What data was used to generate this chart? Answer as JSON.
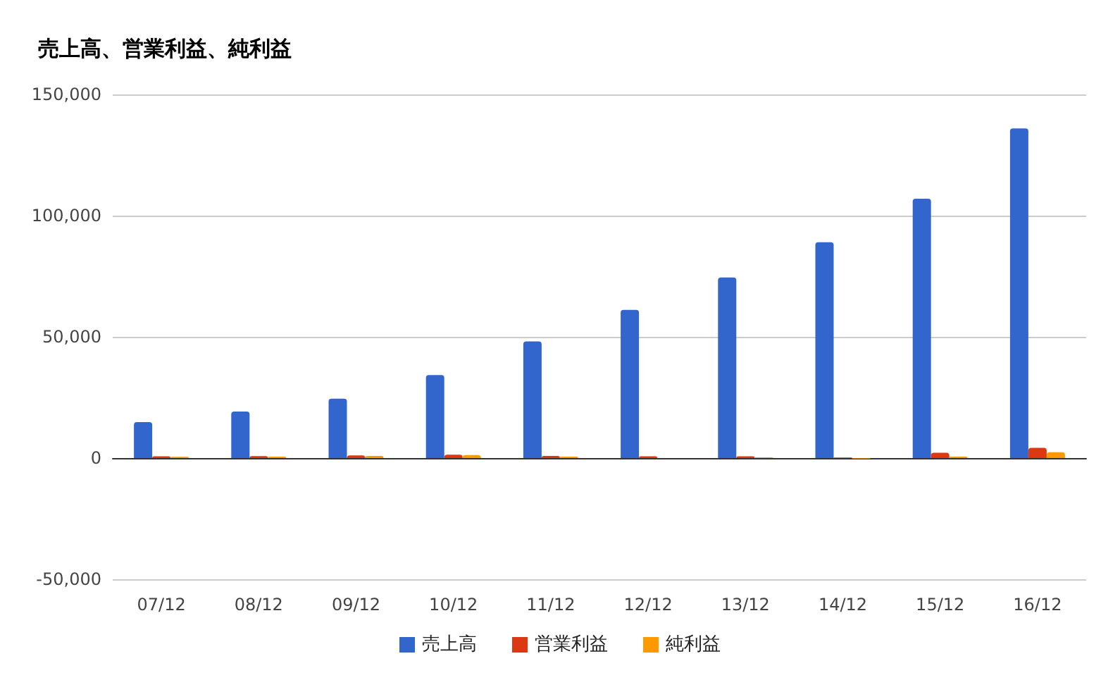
{
  "chart_data": {
    "type": "bar",
    "title": "売上高、営業利益、純利益",
    "categories": [
      "07/12",
      "08/12",
      "09/12",
      "10/12",
      "11/12",
      "12/12",
      "13/12",
      "14/12",
      "15/12",
      "16/12"
    ],
    "series": [
      {
        "name": "売上高",
        "color": "#3366cc",
        "values": [
          14800,
          19200,
          24500,
          34200,
          48100,
          61100,
          74500,
          89000,
          107000,
          136000
        ]
      },
      {
        "name": "営業利益",
        "color": "#dc3912",
        "values": [
          700,
          800,
          1100,
          1400,
          900,
          700,
          700,
          200,
          2200,
          4200
        ]
      },
      {
        "name": "純利益",
        "color": "#ff9900",
        "values": [
          500,
          600,
          900,
          1200,
          600,
          0,
          300,
          -200,
          600,
          2400
        ]
      }
    ],
    "ylim": [
      -50000,
      150000
    ],
    "yticks": [
      {
        "value": -50000,
        "label": "-50,000"
      },
      {
        "value": 0,
        "label": "0"
      },
      {
        "value": 50000,
        "label": "50,000"
      },
      {
        "value": 100000,
        "label": "100,000"
      },
      {
        "value": 150000,
        "label": "150,000"
      }
    ],
    "grid": "y",
    "legend": "bottom"
  }
}
